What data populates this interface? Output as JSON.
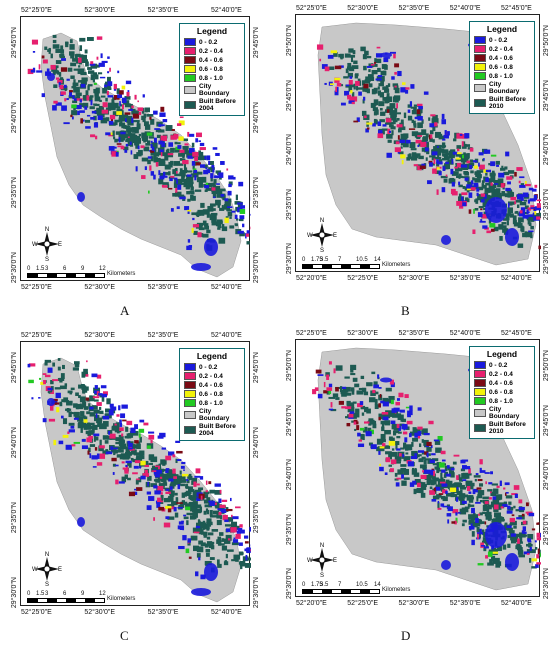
{
  "panels": [
    {
      "label": "A",
      "legend": {
        "title": "Legend",
        "built_label": "Built Before 2004"
      },
      "top_ticks": [
        "52°25'0\"E",
        "52°30'0\"E",
        "52°35'0\"E",
        "52°40'0\"E"
      ],
      "bottom_ticks": [
        "52°25'0\"E",
        "52°30'0\"E",
        "52°35'0\"E",
        "52°40'0\"E"
      ],
      "left_ticks": [
        "29°45'0\"N",
        "29°40'0\"N",
        "29°35'0\"N",
        "29°30'0\"N"
      ],
      "right_ticks": [
        "29°45'0\"N",
        "29°40'0\"N",
        "29°35'0\"N",
        "29°30'0\"N"
      ],
      "scale_ticks": [
        "0",
        "1.5",
        "3",
        "6",
        "9",
        "12"
      ],
      "scale_unit": "Kilometers"
    },
    {
      "label": "B",
      "legend": {
        "title": "Legend",
        "built_label": "Built Before 2010"
      },
      "top_ticks": [
        "52°25'0\"E",
        "52°30'0\"E",
        "52°35'0\"E",
        "52°40'0\"E",
        "52°45'0\"E"
      ],
      "bottom_ticks": [
        "52°20'0\"E",
        "52°25'0\"E",
        "52°30'0\"E",
        "52°35'0\"E",
        "52°40'0\"E"
      ],
      "left_ticks": [
        "29°50'0\"N",
        "29°45'0\"N",
        "29°40'0\"N",
        "29°35'0\"N",
        "29°30'0\"N"
      ],
      "right_ticks": [
        "29°50'0\"N",
        "29°45'0\"N",
        "29°40'0\"N",
        "29°35'0\"N",
        "29°30'0\"N"
      ],
      "scale_ticks": [
        "0",
        "1.75",
        "3.5",
        "7",
        "10.5",
        "14"
      ],
      "scale_unit": "Kilometers"
    },
    {
      "label": "C",
      "legend": {
        "title": "Legend",
        "built_label": "Built Before 2004"
      },
      "top_ticks": [
        "52°25'0\"E",
        "52°30'0\"E",
        "52°35'0\"E",
        "52°40'0\"E"
      ],
      "bottom_ticks": [
        "52°25'0\"E",
        "52°30'0\"E",
        "52°35'0\"E",
        "52°40'0\"E"
      ],
      "left_ticks": [
        "29°45'0\"N",
        "29°40'0\"N",
        "29°35'0\"N",
        "29°30'0\"N"
      ],
      "right_ticks": [
        "29°45'0\"N",
        "29°40'0\"N",
        "29°35'0\"N",
        "29°30'0\"N"
      ],
      "scale_ticks": [
        "0",
        "1.5",
        "3",
        "6",
        "9",
        "12"
      ],
      "scale_unit": "Kilometers"
    },
    {
      "label": "D",
      "legend": {
        "title": "Legend",
        "built_label": "Built Before 2010"
      },
      "top_ticks": [
        "52°25'0\"E",
        "52°30'0\"E",
        "52°35'0\"E",
        "52°40'0\"E",
        "52°45'0\"E"
      ],
      "bottom_ticks": [
        "52°20'0\"E",
        "52°25'0\"E",
        "52°30'0\"E",
        "52°35'0\"E",
        "52°40'0\"E"
      ],
      "left_ticks": [
        "29°50'0\"N",
        "29°45'0\"N",
        "29°40'0\"N",
        "29°35'0\"N",
        "29°30'0\"N"
      ],
      "right_ticks": [
        "29°50'0\"N",
        "29°45'0\"N",
        "29°40'0\"N",
        "29°35'0\"N",
        "29°30'0\"N"
      ],
      "scale_ticks": [
        "0",
        "1.75",
        "3.5",
        "7",
        "10.5",
        "14"
      ],
      "scale_unit": "Kilometers"
    }
  ],
  "legend_classes": [
    {
      "label": "0 - 0.2",
      "color": "#1a1adc"
    },
    {
      "label": "0.2 - 0.4",
      "color": "#e6206e"
    },
    {
      "label": "0.4 - 0.6",
      "color": "#7a0a14"
    },
    {
      "label": "0.6 - 0.8",
      "color": "#f2f20a"
    },
    {
      "label": "0.8 - 1.0",
      "color": "#22c922"
    }
  ],
  "city_boundary": {
    "label": "City Boundary",
    "color": "#c8c8c8"
  },
  "built_color": "#1d5a52",
  "north": {
    "n": "N",
    "s": "S",
    "e": "E",
    "w": "W"
  }
}
